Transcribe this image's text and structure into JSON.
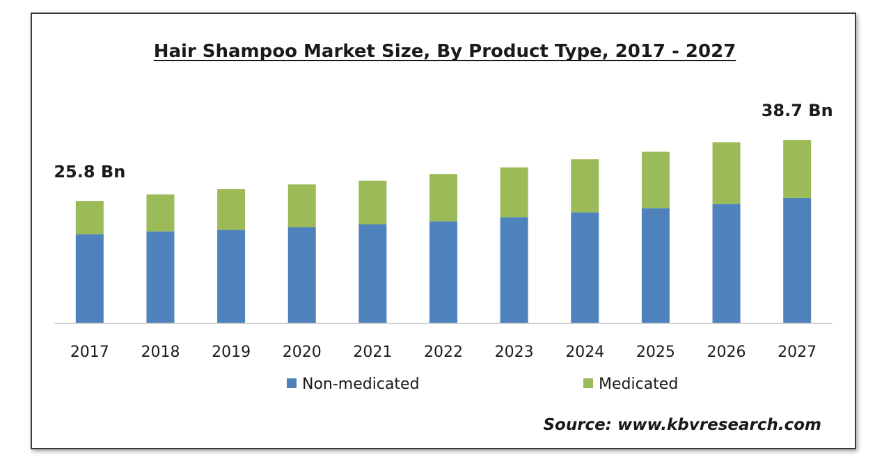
{
  "chart_data": {
    "type": "bar",
    "stacked": true,
    "title": "Hair Shampoo Market Size, By Product Type, 2017 - 2027",
    "xlabel": "",
    "ylabel": "",
    "categories": [
      "2017",
      "2018",
      "2019",
      "2020",
      "2021",
      "2022",
      "2023",
      "2024",
      "2025",
      "2026",
      "2027"
    ],
    "series": [
      {
        "name": "Non-medicated",
        "color": "#4f81bd",
        "values": [
          18.8,
          19.4,
          19.7,
          20.3,
          20.9,
          21.5,
          22.4,
          23.4,
          24.3,
          25.2,
          26.4
        ]
      },
      {
        "name": "Medicated",
        "color": "#9bbb59",
        "values": [
          7.0,
          7.8,
          8.6,
          9.0,
          9.2,
          10.0,
          10.5,
          11.2,
          11.9,
          13.0,
          12.3
        ]
      }
    ],
    "annotations": [
      {
        "category": "2017",
        "text": "25.8 Bn"
      },
      {
        "category": "2027",
        "text": "38.7 Bn"
      }
    ],
    "ylim": [
      0,
      45
    ],
    "grid": false,
    "legend": "bottom-center",
    "source": "Source: www.kbvresearch.com"
  }
}
